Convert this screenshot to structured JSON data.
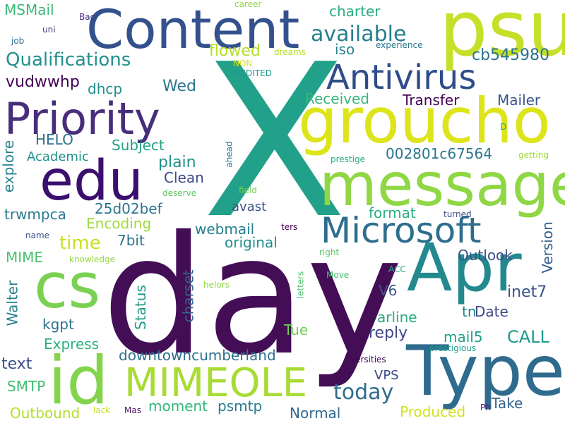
{
  "words": [
    {
      "text": "X",
      "color": "#21a08a"
    },
    {
      "text": "day",
      "color": "#440e57"
    },
    {
      "text": "Content",
      "color": "#33518c"
    },
    {
      "text": "psu",
      "color": "#c6e02a"
    },
    {
      "text": "groucho",
      "color": "#dde41a"
    },
    {
      "text": "Priority",
      "color": "#472d7b"
    },
    {
      "text": "edu",
      "color": "#3b0f6f"
    },
    {
      "text": "message",
      "color": "#8fd744"
    },
    {
      "text": "Microsoft",
      "color": "#2d6d8e"
    },
    {
      "text": "Antivirus",
      "color": "#2f4d8a"
    },
    {
      "text": "Apr",
      "color": "#23898e"
    },
    {
      "text": "cs",
      "color": "#7ad151"
    },
    {
      "text": "Type",
      "color": "#2f6b8e"
    },
    {
      "text": "id",
      "color": "#84d44b"
    },
    {
      "text": "MIMEOLE",
      "color": "#a8db34"
    },
    {
      "text": "Qualifications",
      "color": "#22908d"
    },
    {
      "text": "available",
      "color": "#27808e"
    },
    {
      "text": "cb545980",
      "color": "#2c738e"
    },
    {
      "text": "charter",
      "color": "#29af7f"
    },
    {
      "text": "MSMail",
      "color": "#3aba76"
    },
    {
      "text": "iso",
      "color": "#26828e"
    },
    {
      "text": "flowed",
      "color": "#b5de2b"
    },
    {
      "text": "vudwwhp",
      "color": "#440154"
    },
    {
      "text": "dhcp",
      "color": "#218e8d"
    },
    {
      "text": "Wed",
      "color": "#2b758e"
    },
    {
      "text": "Received",
      "color": "#35b779"
    },
    {
      "text": "Transfer",
      "color": "#440256"
    },
    {
      "text": "Mailer",
      "color": "#39558c"
    },
    {
      "text": "HELO",
      "color": "#2e6f8e"
    },
    {
      "text": "Subject",
      "color": "#1fa287"
    },
    {
      "text": "Academic",
      "color": "#20928c"
    },
    {
      "text": "002801c67564",
      "color": "#2a768e"
    },
    {
      "text": "explore",
      "color": "#25848e"
    },
    {
      "text": "plain",
      "color": "#21918c"
    },
    {
      "text": "Clean",
      "color": "#3e4a89"
    },
    {
      "text": "25d02bef",
      "color": "#2b748e"
    },
    {
      "text": "trwmpca",
      "color": "#2a788e"
    },
    {
      "text": "avast",
      "color": "#3b528b"
    },
    {
      "text": "format",
      "color": "#2ab07f"
    },
    {
      "text": "Version",
      "color": "#355f8d"
    },
    {
      "text": "Encoding",
      "color": "#9fda3a"
    },
    {
      "text": "webmail",
      "color": "#27818e"
    },
    {
      "text": "time",
      "color": "#c8e020"
    },
    {
      "text": "original",
      "color": "#228d8d"
    },
    {
      "text": "7bit",
      "color": "#2c728e"
    },
    {
      "text": "MIME",
      "color": "#4ac16d"
    },
    {
      "text": "Outlook",
      "color": "#3d4e8a"
    },
    {
      "text": "Walter",
      "color": "#26828e"
    },
    {
      "text": "charset",
      "color": "#31668e"
    },
    {
      "text": "Status",
      "color": "#1f9a8a"
    },
    {
      "text": "V6",
      "color": "#39568c"
    },
    {
      "text": "inet7",
      "color": "#3b528b"
    },
    {
      "text": "Date",
      "color": "#3e4989"
    },
    {
      "text": "arline",
      "color": "#25ab82"
    },
    {
      "text": "kgpt",
      "color": "#2c738e"
    },
    {
      "text": "tn",
      "color": "#24868e"
    },
    {
      "text": "CALL",
      "color": "#1e9b8a"
    },
    {
      "text": "reply",
      "color": "#3f4788"
    },
    {
      "text": "Tue",
      "color": "#6ece58"
    },
    {
      "text": "mail5",
      "color": "#1fa088"
    },
    {
      "text": "Express",
      "color": "#2db27d"
    },
    {
      "text": "downtowncumberland",
      "color": "#2d708e"
    },
    {
      "text": "text",
      "color": "#3b528b"
    },
    {
      "text": "SMTP",
      "color": "#3fbc73"
    },
    {
      "text": "today",
      "color": "#2f6c8e"
    },
    {
      "text": "VPS",
      "color": "#3f4889"
    },
    {
      "text": "moment",
      "color": "#32b67a"
    },
    {
      "text": "psmtp",
      "color": "#287d8e"
    },
    {
      "text": "Take",
      "color": "#33628d"
    },
    {
      "text": "Outbound",
      "color": "#b2dd2d"
    },
    {
      "text": "Normal",
      "color": "#31688e"
    },
    {
      "text": "Produced",
      "color": "#d2e21b"
    },
    {
      "text": "uni",
      "color": "#404588"
    },
    {
      "text": "Bac",
      "color": "#46307e"
    },
    {
      "text": "job",
      "color": "#2e6e8e"
    },
    {
      "text": "career",
      "color": "#8ed645"
    },
    {
      "text": "dreams",
      "color": "#b8de29"
    },
    {
      "text": "experience",
      "color": "#2a778e"
    },
    {
      "text": "NON",
      "color": "#dae319"
    },
    {
      "text": "REDITED",
      "color": "#1f998a"
    },
    {
      "text": "D",
      "color": "#25ac82"
    },
    {
      "text": "prestige",
      "color": "#24aa83"
    },
    {
      "text": "getting",
      "color": "#a0da39"
    },
    {
      "text": "ahead",
      "color": "#2c728e"
    },
    {
      "text": "deserve",
      "color": "#5ec962"
    },
    {
      "text": "field",
      "color": "#74d055"
    },
    {
      "text": "ters",
      "color": "#440154"
    },
    {
      "text": "turned",
      "color": "#3e4a89"
    },
    {
      "text": "name",
      "color": "#3c4f8a"
    },
    {
      "text": "right",
      "color": "#5cc863"
    },
    {
      "text": "knowledge",
      "color": "#95d840"
    },
    {
      "text": "Move",
      "color": "#48c16e"
    },
    {
      "text": "letters",
      "color": "#48c16e"
    },
    {
      "text": "helors",
      "color": "#8bd646"
    },
    {
      "text": "ACC",
      "color": "#26ad81"
    },
    {
      "text": "prestigious",
      "color": "#1f9e89"
    },
    {
      "text": "versities",
      "color": "#440154"
    },
    {
      "text": "lack",
      "color": "#c2df23"
    },
    {
      "text": "Mas",
      "color": "#471365"
    },
    {
      "text": "Ph",
      "color": "#481a6c"
    }
  ]
}
